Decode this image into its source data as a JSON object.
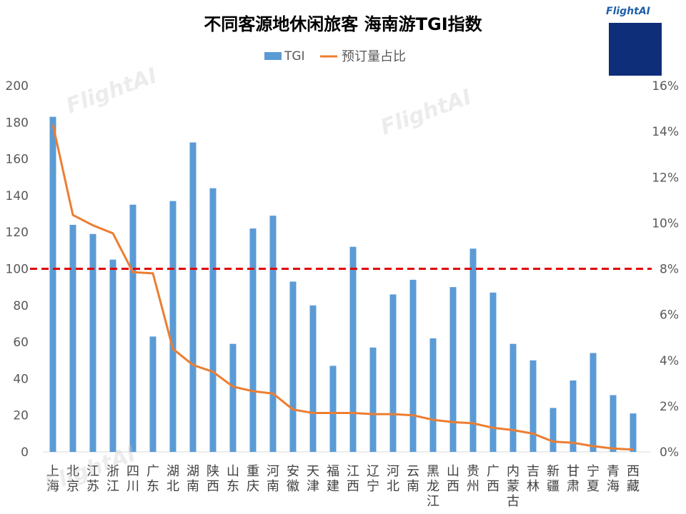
{
  "brand": "FlightAI",
  "chart_data": {
    "type": "bar",
    "title": "不同客源地休闲旅客 海南游TGI指数",
    "legend_position": "top",
    "categories": [
      [
        "上",
        "海"
      ],
      [
        "北",
        "京"
      ],
      [
        "江",
        "苏"
      ],
      [
        "浙",
        "江"
      ],
      [
        "四",
        "川"
      ],
      [
        "广",
        "东"
      ],
      [
        "湖",
        "北"
      ],
      [
        "湖",
        "南"
      ],
      [
        "陕",
        "西"
      ],
      [
        "山",
        "东"
      ],
      [
        "重",
        "庆"
      ],
      [
        "河",
        "南"
      ],
      [
        "安",
        "徽"
      ],
      [
        "天",
        "津"
      ],
      [
        "福",
        "建"
      ],
      [
        "江",
        "西"
      ],
      [
        "辽",
        "宁"
      ],
      [
        "河",
        "北"
      ],
      [
        "云",
        "南"
      ],
      [
        "黑",
        "龙",
        "江"
      ],
      [
        "山",
        "西"
      ],
      [
        "贵",
        "州"
      ],
      [
        "广",
        "西"
      ],
      [
        "内",
        "蒙",
        "古"
      ],
      [
        "吉",
        "林"
      ],
      [
        "新",
        "疆"
      ],
      [
        "甘",
        "肃"
      ],
      [
        "宁",
        "夏"
      ],
      [
        "青",
        "海"
      ],
      [
        "西",
        "藏"
      ]
    ],
    "series": [
      {
        "name": "TGI",
        "type": "bar",
        "axis": "left",
        "color": "#5b9bd5",
        "values": [
          183,
          124,
          119,
          105,
          135,
          63,
          137,
          169,
          144,
          59,
          122,
          129,
          93,
          80,
          47,
          112,
          57,
          86,
          94,
          62,
          90,
          111,
          87,
          59,
          50,
          24,
          39,
          54,
          31,
          21
        ]
      },
      {
        "name": "预订量占比",
        "type": "line",
        "axis": "right",
        "color": "#ed7d31",
        "values": [
          14.3,
          10.35,
          9.9,
          9.55,
          7.85,
          7.8,
          4.5,
          3.8,
          3.5,
          2.85,
          2.65,
          2.55,
          1.85,
          1.7,
          1.7,
          1.7,
          1.65,
          1.65,
          1.6,
          1.4,
          1.3,
          1.25,
          1.05,
          0.95,
          0.8,
          0.45,
          0.4,
          0.25,
          0.15,
          0.1
        ]
      }
    ],
    "y_left": {
      "min": 0,
      "max": 200,
      "ticks": [
        0,
        20,
        40,
        60,
        80,
        100,
        120,
        140,
        160,
        180,
        200
      ]
    },
    "y_right": {
      "min": 0,
      "max": 16,
      "ticks": [
        "0%",
        "2%",
        "4%",
        "6%",
        "8%",
        "10%",
        "12%",
        "14%",
        "16%"
      ]
    },
    "reference_line": {
      "value": 100,
      "axis": "left",
      "color": "#e00000",
      "style": "dashed"
    },
    "grid": false
  }
}
